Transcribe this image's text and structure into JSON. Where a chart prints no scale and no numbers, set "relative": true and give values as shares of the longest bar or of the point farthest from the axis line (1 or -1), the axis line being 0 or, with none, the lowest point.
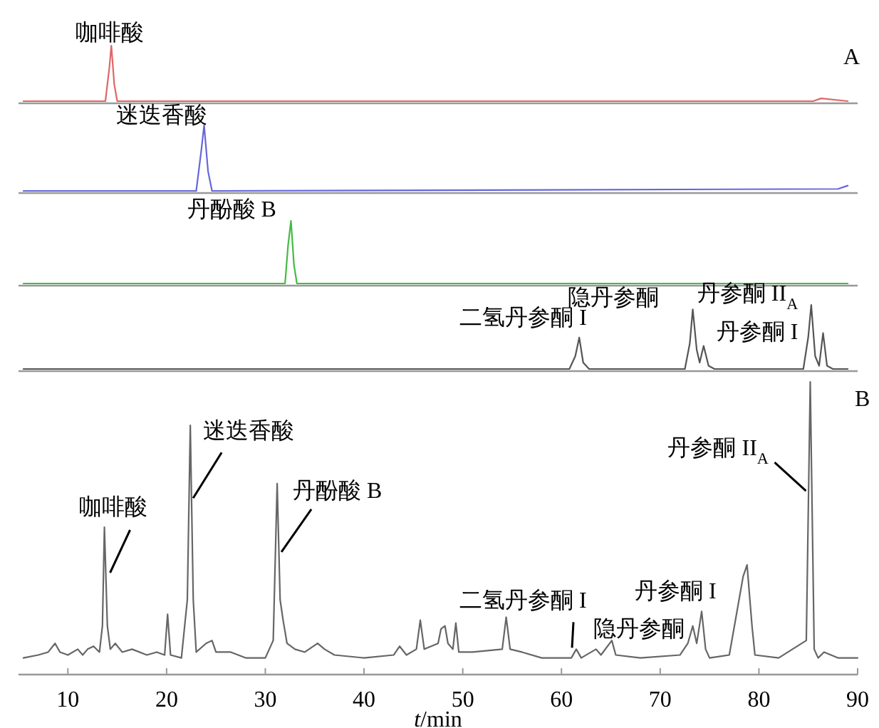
{
  "chart_data": [
    {
      "type": "line",
      "relative": true,
      "xlim": [
        5,
        90
      ],
      "series": [
        {
          "color": "#e06666",
          "x": [
            5.5,
            13.8,
            14.2,
            14.4,
            14.7,
            15,
            85.5,
            86.3,
            89
          ],
          "values": [
            0,
            0,
            0.6,
            1,
            0.3,
            0,
            0,
            0.05,
            0
          ]
        }
      ],
      "annotations": [
        {
          "text": "咖啡酸",
          "x": 14.4,
          "y": 1
        },
        "A"
      ]
    },
    {
      "type": "line",
      "relative": true,
      "xlim": [
        5,
        90
      ],
      "series": [
        {
          "color": "#6666dd",
          "x": [
            5.5,
            23,
            23.5,
            23.8,
            24.2,
            24.6,
            88,
            89
          ],
          "values": [
            0,
            0,
            0.6,
            1,
            0.3,
            0,
            0.03,
            0.08
          ]
        }
      ],
      "annotations": [
        {
          "text": "迷迭香酸",
          "x": 23.8,
          "y": 1
        }
      ]
    },
    {
      "type": "line",
      "relative": true,
      "xlim": [
        5,
        90
      ],
      "series": [
        {
          "color": "#44bb44",
          "x": [
            5.5,
            32,
            32.3,
            32.6,
            32.9,
            33.2,
            89
          ],
          "values": [
            0,
            0,
            0.6,
            1,
            0.3,
            0,
            0
          ]
        }
      ],
      "annotations": [
        {
          "text": "丹酚酸 B",
          "x": 32.6,
          "y": 1
        }
      ]
    },
    {
      "type": "line",
      "relative": true,
      "xlim": [
        5,
        90
      ],
      "series": [
        {
          "color": "#555555",
          "x": [
            5.5,
            60.8,
            61.4,
            61.8,
            62.2,
            62.8,
            72.5,
            73,
            73.3,
            73.7,
            74,
            74.4,
            74.9,
            75.5,
            84.5,
            85,
            85.3,
            85.7,
            86.1,
            86.5,
            86.9,
            87.5,
            89
          ],
          "values": [
            0,
            0,
            0.2,
            0.49,
            0.1,
            0,
            0,
            0.4,
            0.93,
            0.3,
            0.1,
            0.36,
            0.05,
            0,
            0,
            0.5,
            1,
            0.2,
            0.05,
            0.56,
            0.05,
            0,
            0
          ]
        }
      ],
      "annotations": [
        {
          "text": "二氢丹参酮 I",
          "x": 61.8,
          "y": 0.49
        },
        {
          "text": "隐丹参酮",
          "x": 73.3,
          "y": 0.93
        },
        {
          "text": "丹参酮 I",
          "x": 74.4,
          "y": 0.36
        },
        {
          "text": "丹参酮 II$_{A}$",
          "x": 85.3,
          "y": 1
        }
      ]
    },
    {
      "type": "line",
      "relative": true,
      "xlim": [
        5,
        90
      ],
      "xticks": [
        10,
        20,
        30,
        40,
        50,
        60,
        70,
        80,
        90
      ],
      "xlabel": "*t*/min",
      "series": [
        {
          "color": "#666666",
          "x": [
            5.5,
            7,
            8,
            8.7,
            9.2,
            10,
            11,
            11.5,
            12,
            12.6,
            13.2,
            13.5,
            13.7,
            14,
            14.3,
            14.8,
            15.5,
            16.5,
            18,
            19,
            19.8,
            20.1,
            20.4,
            21.5,
            22.1,
            22.4,
            22.7,
            23,
            24,
            24.6,
            25,
            26.5,
            28,
            30,
            30.8,
            31.2,
            31.5,
            31.8,
            32.2,
            33,
            34,
            35.3,
            36,
            37,
            40,
            43,
            43.6,
            44.3,
            45.3,
            45.7,
            46.1,
            47.5,
            47.8,
            48.2,
            48.5,
            49,
            49.3,
            49.6,
            51,
            54,
            54.4,
            54.8,
            56,
            58,
            61,
            61.5,
            62,
            63.5,
            64,
            65.1,
            65.5,
            68,
            72,
            72.8,
            73.3,
            73.7,
            74.2,
            74.6,
            75,
            77,
            78.4,
            78.8,
            79.3,
            79.6,
            82,
            84.8,
            85.2,
            85.6,
            86,
            86.6,
            88,
            90
          ],
          "values": [
            0.05,
            0.06,
            0.07,
            0.1,
            0.07,
            0.06,
            0.08,
            0.06,
            0.08,
            0.09,
            0.07,
            0.16,
            0.5,
            0.16,
            0.08,
            0.1,
            0.07,
            0.08,
            0.06,
            0.07,
            0.06,
            0.2,
            0.06,
            0.05,
            0.25,
            0.85,
            0.25,
            0.07,
            0.1,
            0.11,
            0.07,
            0.07,
            0.05,
            0.05,
            0.11,
            0.65,
            0.25,
            0.18,
            0.1,
            0.08,
            0.07,
            0.1,
            0.08,
            0.06,
            0.05,
            0.06,
            0.09,
            0.06,
            0.08,
            0.18,
            0.08,
            0.1,
            0.15,
            0.16,
            0.1,
            0.08,
            0.17,
            0.07,
            0.07,
            0.08,
            0.19,
            0.08,
            0.07,
            0.05,
            0.05,
            0.08,
            0.05,
            0.08,
            0.06,
            0.11,
            0.06,
            0.05,
            0.06,
            0.1,
            0.16,
            0.1,
            0.21,
            0.08,
            0.05,
            0.06,
            0.33,
            0.37,
            0.16,
            0.06,
            0.05,
            0.11,
            1,
            0.08,
            0.05,
            0.07,
            0.05,
            0.05
          ]
        }
      ],
      "annotations": [
        {
          "text": "咖啡酸",
          "x": 13.7,
          "y": 0.5
        },
        {
          "text": "迷迭香酸",
          "x": 22.4,
          "y": 0.85
        },
        {
          "text": "丹酚酸 B",
          "x": 31.2,
          "y": 0.65
        },
        {
          "text": "二氢丹参酮 I",
          "x": 61.5,
          "y": 0.08
        },
        {
          "text": "丹参酮 I",
          "x": 74.2,
          "y": 0.21
        },
        {
          "text": "隐丹参酮",
          "x": 73.3,
          "y": 0.16
        },
        {
          "text": "丹参酮 II$_{A}$",
          "x": 85.2,
          "y": 0.62
        },
        "B"
      ]
    }
  ]
}
